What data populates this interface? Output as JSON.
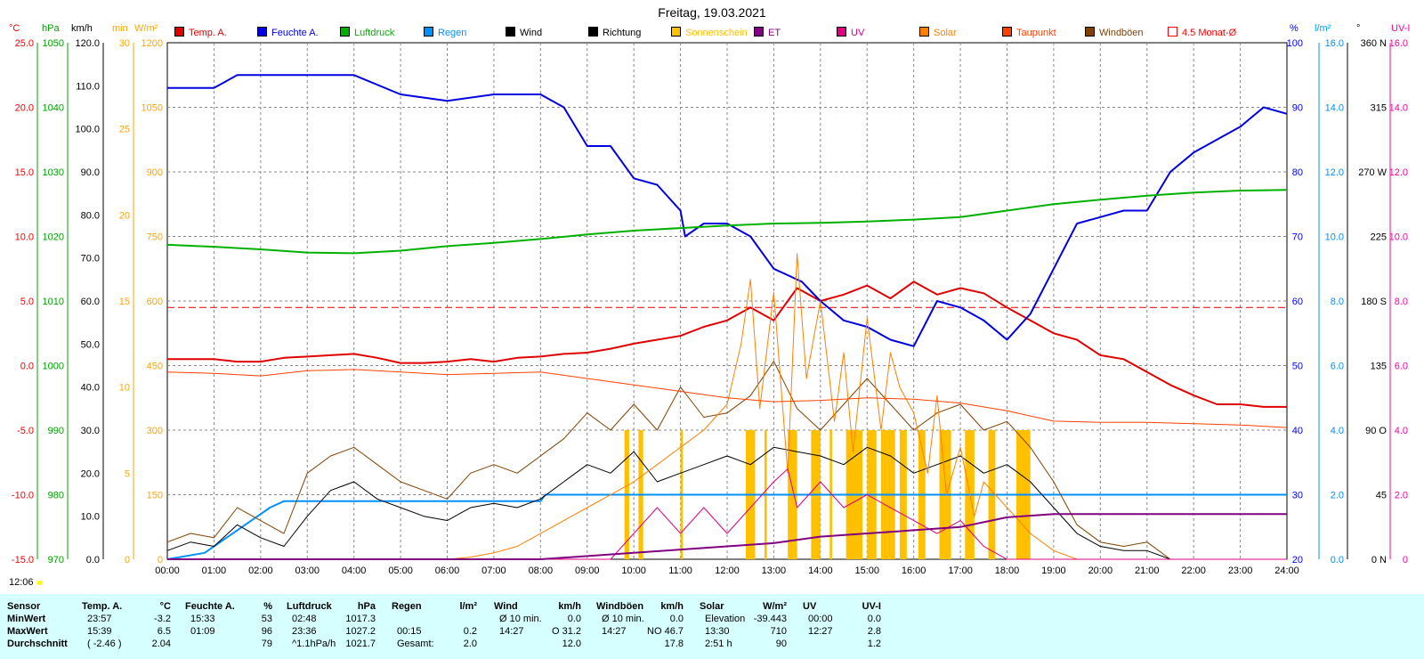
{
  "title": "Freitag, 19.03.2021",
  "time_label": "12:06",
  "units": {
    "temp": "°C",
    "pressure": "hPa",
    "wind": "km/h",
    "sun": "min",
    "solar": "W/m²",
    "humidity": "%",
    "rain": "l/m²",
    "direction": "°",
    "uv": "UV-I"
  },
  "unit_colors": {
    "temp": "#ff0000",
    "pressure": "#00a000",
    "wind": "#000000",
    "sun": "#ffa500",
    "solar": "#ffa500",
    "humidity": "#0000ff",
    "rain": "#00a0ff",
    "direction": "#000000",
    "uv": "#ff00a0"
  },
  "legend": [
    {
      "label": "Temp. A.",
      "color": "#e00000"
    },
    {
      "label": "Feuchte A.",
      "color": "#0000e0"
    },
    {
      "label": "Luftdruck",
      "color": "#00b000"
    },
    {
      "label": "Regen",
      "color": "#0090ff"
    },
    {
      "label": "Wind",
      "color": "#000000"
    },
    {
      "label": "Richtung",
      "color": "#000000"
    },
    {
      "label": "Sonnenschein",
      "color": "#ffc000"
    },
    {
      "label": "ET",
      "color": "#800080"
    },
    {
      "label": "UV",
      "color": "#e0007f"
    },
    {
      "label": "Solar",
      "color": "#ff8000"
    },
    {
      "label": "Taupunkt",
      "color": "#ff4000"
    },
    {
      "label": "Windböen",
      "color": "#804000"
    },
    {
      "label": "4.5 Monat-Ø",
      "color": "#ff0000",
      "hollow": true
    }
  ],
  "chart_data": {
    "type": "line",
    "title": "Freitag, 19.03.2021",
    "grid": true,
    "x_unit": "hours",
    "xlim": [
      0,
      24
    ],
    "x_ticks": [
      "00:00",
      "01:00",
      "02:00",
      "03:00",
      "04:00",
      "05:00",
      "06:00",
      "07:00",
      "08:00",
      "09:00",
      "10:00",
      "11:00",
      "12:00",
      "13:00",
      "14:00",
      "15:00",
      "16:00",
      "17:00",
      "18:00",
      "19:00",
      "20:00",
      "21:00",
      "22:00",
      "23:00",
      "24:00"
    ],
    "axes": {
      "temp": {
        "unit": "°C",
        "range": [
          -15,
          25
        ],
        "ticks": [
          "25.0",
          "20.0",
          "15.0",
          "10.0",
          "5.0",
          "0.0",
          "-5.0",
          "-10.0",
          "-15.0"
        ]
      },
      "pressure": {
        "unit": "hPa",
        "range": [
          970,
          1050
        ],
        "ticks": [
          "1050",
          "1040",
          "1030",
          "1020",
          "1010",
          "1000",
          "990",
          "980",
          "970"
        ]
      },
      "wind": {
        "unit": "km/h",
        "range": [
          0,
          120
        ],
        "ticks": [
          "120.0",
          "110.0",
          "100.0",
          "90.0",
          "80.0",
          "70.0",
          "60.0",
          "50.0",
          "40.0",
          "30.0",
          "20.0",
          "10.0",
          "0.0"
        ]
      },
      "sun": {
        "unit": "min",
        "range": [
          0,
          30
        ],
        "ticks": [
          "30",
          "25",
          "20",
          "15",
          "10",
          "5",
          "0"
        ]
      },
      "solar": {
        "unit": "W/m²",
        "range": [
          0,
          1200
        ],
        "ticks": [
          "1200",
          "1050",
          "900",
          "750",
          "600",
          "450",
          "300",
          "150",
          "0"
        ]
      },
      "humidity": {
        "unit": "%",
        "range": [
          20,
          100
        ],
        "ticks": [
          "100",
          "90",
          "80",
          "70",
          "60",
          "50",
          "40",
          "30",
          "20"
        ]
      },
      "rain": {
        "unit": "l/m²",
        "range": [
          0,
          16
        ],
        "ticks": [
          "16.0",
          "14.0",
          "12.0",
          "10.0",
          "8.0",
          "6.0",
          "4.0",
          "2.0",
          "0.0"
        ]
      },
      "direction": {
        "unit": "°",
        "range": [
          0,
          360
        ],
        "ticks": [
          "360 N",
          "315",
          "270 W",
          "225",
          "180 S",
          "135",
          "90 O",
          "45",
          "0 N"
        ]
      },
      "uv": {
        "unit": "UV-I",
        "range": [
          0,
          16
        ],
        "ticks": [
          "16.0",
          "14.0",
          "12.0",
          "10.0",
          "8.0",
          "6.0",
          "4.0",
          "2.0",
          "0"
        ]
      }
    },
    "series": [
      {
        "name": "Temp. A.",
        "axis": "temp",
        "color": "#e00000",
        "x": [
          0,
          1,
          1.5,
          2,
          2.5,
          3,
          3.5,
          4,
          4.5,
          5,
          5.5,
          6,
          6.5,
          7,
          7.5,
          8,
          8.5,
          9,
          9.5,
          10,
          10.5,
          11,
          11.5,
          12,
          12.5,
          13,
          13.5,
          14,
          14.5,
          15,
          15.5,
          16,
          16.5,
          17,
          17.5,
          18,
          18.5,
          19,
          19.5,
          20,
          20.5,
          21,
          21.5,
          22,
          22.5,
          23,
          23.5,
          24
        ],
        "y": [
          0.5,
          0.5,
          0.3,
          0.3,
          0.6,
          0.7,
          0.8,
          0.9,
          0.6,
          0.2,
          0.2,
          0.3,
          0.5,
          0.3,
          0.6,
          0.7,
          0.9,
          1.0,
          1.3,
          1.7,
          2.0,
          2.3,
          3.0,
          3.5,
          4.5,
          3.5,
          6.0,
          5.0,
          5.5,
          6.2,
          5.2,
          6.5,
          5.5,
          6.0,
          5.6,
          4.5,
          3.5,
          2.5,
          2.0,
          0.8,
          0.5,
          -0.5,
          -1.5,
          -2.3,
          -3.0,
          -3.0,
          -3.2,
          -3.2
        ]
      },
      {
        "name": "Feuchte A.",
        "axis": "humidity",
        "color": "#0000e0",
        "x": [
          0,
          1,
          1.5,
          2,
          3,
          4,
          5,
          6,
          7,
          8,
          8.5,
          9,
          9.5,
          10,
          10.5,
          11,
          11.1,
          11.5,
          12,
          12.5,
          13,
          13.3,
          13.6,
          14,
          14.5,
          15,
          15.5,
          16,
          16.5,
          17,
          17.5,
          18,
          18.5,
          19,
          19.5,
          20,
          20.5,
          21,
          21.5,
          22,
          22.5,
          23,
          23.5,
          24
        ],
        "y": [
          93,
          93,
          95,
          95,
          95,
          95,
          92,
          91,
          92,
          92,
          90,
          84,
          84,
          79,
          78,
          74,
          70,
          72,
          72,
          70,
          65,
          64,
          63,
          60,
          57,
          56,
          54,
          53,
          60,
          59,
          57,
          54,
          58,
          65,
          72,
          73,
          74,
          74,
          80,
          83,
          85,
          87,
          90,
          89
        ]
      },
      {
        "name": "Luftdruck",
        "axis": "pressure",
        "color": "#00b000",
        "x": [
          0,
          1,
          2,
          3,
          4,
          5,
          6,
          7,
          8,
          9,
          10,
          11,
          12,
          13,
          14,
          15,
          16,
          17,
          18,
          19,
          20,
          21,
          22,
          23,
          24
        ],
        "y": [
          1018.7,
          1018.4,
          1018.0,
          1017.5,
          1017.4,
          1017.8,
          1018.5,
          1019.0,
          1019.6,
          1020.3,
          1020.9,
          1021.3,
          1021.7,
          1022.0,
          1022.1,
          1022.3,
          1022.6,
          1023.0,
          1024.0,
          1025.0,
          1025.7,
          1026.3,
          1026.8,
          1027.1,
          1027.2
        ]
      },
      {
        "name": "Regen",
        "axis": "rain",
        "color": "#0090ff",
        "x": [
          0,
          0.8,
          1.2,
          1.6,
          2.0,
          2.2,
          2.5,
          3,
          4,
          5,
          6,
          7,
          8,
          8.1,
          9,
          10,
          11,
          12,
          13,
          14,
          15,
          16,
          17,
          18,
          19,
          20,
          21,
          22,
          23,
          24
        ],
        "y": [
          0,
          0.2,
          0.6,
          1.0,
          1.4,
          1.6,
          1.8,
          1.8,
          1.8,
          1.8,
          1.8,
          1.8,
          1.8,
          2.0,
          2.0,
          2.0,
          2.0,
          2.0,
          2.0,
          2.0,
          2.0,
          2.0,
          2.0,
          2.0,
          2.0,
          2.0,
          2.0,
          2.0,
          2.0,
          2.0
        ]
      },
      {
        "name": "Wind",
        "axis": "wind",
        "color": "#000000",
        "x": [
          0,
          0.5,
          1,
          1.5,
          2,
          2.5,
          3,
          3.5,
          4,
          4.5,
          5,
          5.5,
          6,
          6.5,
          7,
          7.5,
          8,
          8.5,
          9,
          9.5,
          10,
          10.5,
          11,
          11.5,
          12,
          12.5,
          13,
          13.5,
          14,
          14.5,
          15,
          15.5,
          16,
          16.5,
          17,
          17.5,
          18,
          18.5,
          19,
          19.5,
          20,
          20.5,
          21,
          21.5,
          22,
          22.5,
          23,
          23.5,
          24
        ],
        "y": [
          2,
          4,
          3,
          8,
          5,
          3,
          10,
          16,
          18,
          14,
          12,
          10,
          9,
          12,
          13,
          12,
          14,
          18,
          22,
          20,
          25,
          18,
          20,
          22,
          24,
          22,
          26,
          25,
          24,
          22,
          26,
          24,
          20,
          22,
          24,
          20,
          22,
          18,
          12,
          6,
          3,
          2,
          2,
          0,
          0,
          0,
          0,
          0,
          0
        ]
      },
      {
        "name": "Windböen",
        "axis": "wind",
        "color": "#804000",
        "x": [
          0,
          0.5,
          1,
          1.5,
          2,
          2.5,
          3,
          3.5,
          4,
          4.5,
          5,
          5.5,
          6,
          6.5,
          7,
          7.5,
          8,
          8.5,
          9,
          9.5,
          10,
          10.5,
          11,
          11.5,
          12,
          12.5,
          13,
          13.5,
          14,
          14.5,
          15,
          15.5,
          16,
          16.5,
          17,
          17.5,
          18,
          18.5,
          19,
          19.5,
          20,
          20.5,
          21,
          21.5,
          22,
          22.5,
          23,
          23.5,
          24
        ],
        "y": [
          4,
          6,
          5,
          12,
          9,
          6,
          20,
          24,
          26,
          22,
          18,
          16,
          14,
          20,
          22,
          20,
          24,
          28,
          34,
          30,
          36,
          30,
          40,
          33,
          34,
          38,
          46,
          35,
          30,
          36,
          42,
          36,
          30,
          34,
          36,
          30,
          32,
          26,
          18,
          8,
          4,
          3,
          4,
          0,
          0,
          0,
          0,
          0,
          0
        ]
      },
      {
        "name": "Solar",
        "axis": "solar",
        "color": "#ff8000",
        "x": [
          0,
          6,
          6.5,
          7,
          7.5,
          8,
          8.5,
          9,
          9.5,
          10,
          10.5,
          11,
          11.5,
          12,
          12.3,
          12.5,
          12.7,
          13,
          13.3,
          13.5,
          13.7,
          14,
          14.3,
          14.5,
          14.7,
          15,
          15.3,
          15.5,
          15.7,
          16,
          16.3,
          16.5,
          16.7,
          17,
          17.3,
          17.5,
          18,
          18.5,
          19,
          19.5,
          24
        ],
        "y": [
          0,
          0,
          5,
          15,
          30,
          60,
          90,
          120,
          150,
          180,
          220,
          260,
          300,
          360,
          500,
          650,
          350,
          620,
          200,
          710,
          420,
          600,
          320,
          480,
          250,
          560,
          300,
          480,
          400,
          340,
          200,
          380,
          150,
          260,
          100,
          180,
          120,
          60,
          20,
          0,
          0
        ]
      },
      {
        "name": "Taupunkt",
        "axis": "temp",
        "color": "#ff4000",
        "x": [
          0,
          1,
          2,
          3,
          4,
          5,
          6,
          7,
          8,
          9,
          10,
          11,
          12,
          13,
          14,
          15,
          16,
          17,
          18,
          19,
          20,
          21,
          22,
          23,
          24
        ],
        "y": [
          -0.5,
          -0.6,
          -0.8,
          -0.4,
          -0.3,
          -0.5,
          -0.7,
          -0.6,
          -0.5,
          -1.0,
          -1.5,
          -2.0,
          -2.5,
          -2.8,
          -2.7,
          -2.5,
          -2.6,
          -2.9,
          -3.5,
          -4.3,
          -4.4,
          -4.4,
          -4.5,
          -4.6,
          -4.8
        ]
      },
      {
        "name": "UV",
        "axis": "uv",
        "color": "#e0007f",
        "x": [
          0,
          9.5,
          10,
          10.5,
          11,
          11.5,
          12,
          12.5,
          13,
          13.3,
          13.5,
          14,
          14.5,
          15,
          15.5,
          16,
          16.5,
          17,
          17.5,
          18,
          24
        ],
        "y": [
          0,
          0,
          0.8,
          1.6,
          0.8,
          1.6,
          0.8,
          1.6,
          2.4,
          2.8,
          1.6,
          2.4,
          1.6,
          2.0,
          1.6,
          1.2,
          0.8,
          1.2,
          0.4,
          0,
          0
        ]
      },
      {
        "name": "ET",
        "axis": "uv",
        "color": "#800080",
        "x": [
          0,
          8,
          10,
          11,
          12,
          13,
          14,
          15,
          16,
          17,
          18,
          19,
          20,
          21,
          22,
          23,
          24
        ],
        "y": [
          0,
          0,
          0.2,
          0.3,
          0.4,
          0.5,
          0.7,
          0.8,
          0.9,
          1.0,
          1.3,
          1.4,
          1.4,
          1.4,
          1.4,
          1.4,
          1.4
        ]
      }
    ],
    "reference_line": {
      "name": "4.5 Monat-Ø",
      "axis": "temp",
      "y": 4.5,
      "color": "#e00000"
    },
    "sunshine_bars": [
      {
        "start": 9.8,
        "end": 9.9
      },
      {
        "start": 10.1,
        "end": 10.2
      },
      {
        "start": 11.0,
        "end": 11.05
      },
      {
        "start": 12.4,
        "end": 12.6
      },
      {
        "start": 12.8,
        "end": 12.85
      },
      {
        "start": 13.3,
        "end": 13.5
      },
      {
        "start": 13.8,
        "end": 14.0
      },
      {
        "start": 14.2,
        "end": 14.25
      },
      {
        "start": 14.55,
        "end": 14.9
      },
      {
        "start": 15.0,
        "end": 15.2
      },
      {
        "start": 15.3,
        "end": 15.6
      },
      {
        "start": 15.7,
        "end": 15.85
      },
      {
        "start": 16.1,
        "end": 16.25
      },
      {
        "start": 16.55,
        "end": 16.8
      },
      {
        "start": 17.1,
        "end": 17.3
      },
      {
        "start": 17.6,
        "end": 17.75
      },
      {
        "start": 18.2,
        "end": 18.5
      }
    ],
    "sunshine_value": 15
  },
  "stats": {
    "row_labels": [
      "Sensor",
      "MinWert",
      "MaxWert",
      "Durchschnitt"
    ],
    "groups": [
      {
        "name": "Temp. A.",
        "unit": "°C",
        "time": [
          "23:57",
          "15:39",
          "( -2.46 )"
        ],
        "value": [
          "-3.2",
          "6.5",
          "2.04"
        ]
      },
      {
        "name": "Feuchte A.",
        "unit": "%",
        "time": [
          "15:33",
          "01:09",
          ""
        ],
        "value": [
          "53",
          "96",
          "79"
        ]
      },
      {
        "name": "Luftdruck",
        "unit": "hPa",
        "time": [
          "02:48",
          "23:36",
          "^1.1hPa/h"
        ],
        "value": [
          "1017.3",
          "1027.2",
          "1021.7"
        ]
      },
      {
        "name": "Regen",
        "unit": "l/m²",
        "time": [
          "",
          "00:15",
          "Gesamt:"
        ],
        "value": [
          "",
          "0.2",
          "2.0"
        ]
      },
      {
        "name": "Wind",
        "unit": "km/h",
        "time": [
          "Ø 10 min.",
          "14:27",
          ""
        ],
        "value": [
          "0.0",
          "O 31.2",
          "12.0"
        ]
      },
      {
        "name": "Windböen",
        "unit": "km/h",
        "time": [
          "Ø 10 min.",
          "14:27",
          ""
        ],
        "value": [
          "0.0",
          "NO 46.7",
          "17.8"
        ]
      },
      {
        "name": "Solar",
        "unit": "W/m²",
        "time": [
          "Elevation",
          "13:30",
          "2:51 h"
        ],
        "value": [
          "-39.443",
          "710",
          "90"
        ]
      },
      {
        "name": "UV",
        "unit": "UV-I",
        "time": [
          "00:00",
          "12:27",
          ""
        ],
        "value": [
          "0.0",
          "2.8",
          "1.2"
        ]
      }
    ]
  }
}
